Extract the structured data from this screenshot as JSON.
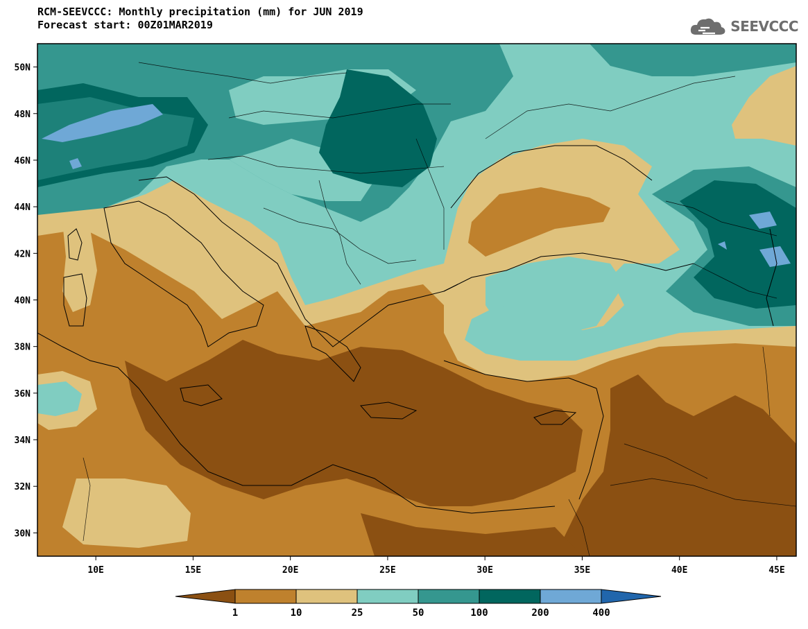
{
  "header": {
    "title": "RCM-SEEVCCC: Monthly precipitation (mm) for JUN 2019",
    "subtitle": "Forecast start: 00Z01MAR2019",
    "logo_text": "SEEVCCC",
    "logo_icon": "cloud-logo-icon"
  },
  "map": {
    "lon_range": [
      7,
      46
    ],
    "lat_range": [
      29,
      51
    ],
    "x_ticks": [
      "10E",
      "15E",
      "20E",
      "25E",
      "30E",
      "35E",
      "40E",
      "45E"
    ],
    "y_ticks": [
      "50N",
      "48N",
      "46N",
      "44N",
      "42N",
      "40N",
      "38N",
      "36N",
      "34N",
      "32N",
      "30N"
    ]
  },
  "colorbar": {
    "levels": [
      "1",
      "10",
      "25",
      "50",
      "100",
      "200",
      "400"
    ],
    "colors": [
      "#8b5012",
      "#bf812d",
      "#dfc27d",
      "#80cdc1",
      "#35978f",
      "#01665e",
      "#6fa8d6",
      "#2166ac"
    ]
  }
}
